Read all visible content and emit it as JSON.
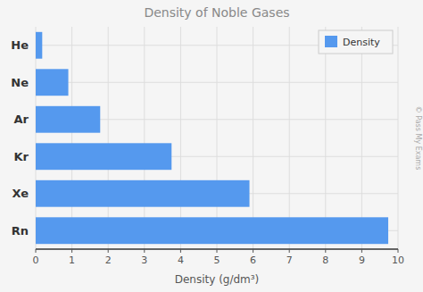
{
  "chart_data": {
    "type": "bar",
    "orientation": "horizontal",
    "title": "Density of Noble Gases",
    "x_label": "Density (g/dm³)",
    "categories": [
      "Rn",
      "Xe",
      "Kr",
      "Ar",
      "Ne",
      "He"
    ],
    "series": [
      {
        "name": "Density",
        "color": "#5599ee",
        "values": [
          9.73,
          5.9,
          3.75,
          1.78,
          0.9,
          0.18
        ]
      }
    ],
    "xlim": [
      0,
      10
    ],
    "xticks": [
      0,
      1,
      2,
      3,
      4,
      5,
      6,
      7,
      8,
      9,
      10
    ],
    "grid": true,
    "legend": "upper right",
    "annotations": [
      "© Pass My Exams"
    ]
  }
}
